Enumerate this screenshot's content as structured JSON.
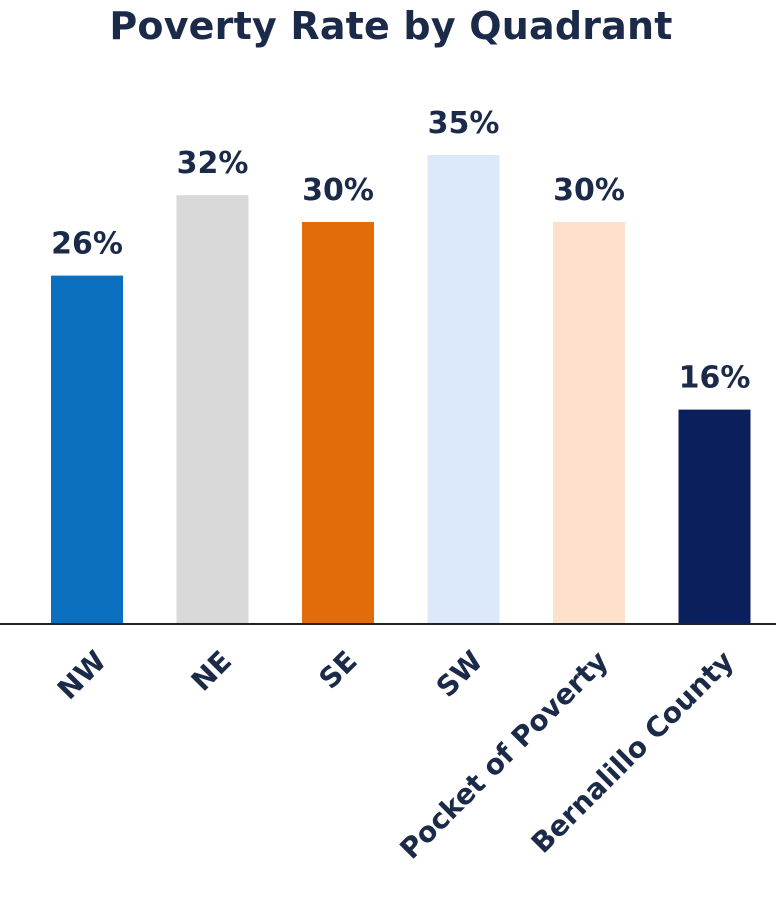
{
  "chart_data": {
    "type": "bar",
    "title": "Poverty Rate by Quadrant",
    "xlabel": "",
    "ylabel": "",
    "categories": [
      "NW",
      "NE",
      "SE",
      "SW",
      "Pocket of Poverty",
      "Bernalillo County"
    ],
    "values": [
      26,
      32,
      30,
      35,
      30,
      16
    ],
    "data_labels": [
      "26%",
      "32%",
      "30%",
      "35%",
      "30%",
      "16%"
    ],
    "colors": [
      "#0b6fc0",
      "#d9d9d9",
      "#e36c0a",
      "#dce9fa",
      "#fde1cc",
      "#0a1f5c"
    ],
    "ylim": [
      0,
      50
    ],
    "grid": false,
    "legend": "none"
  }
}
